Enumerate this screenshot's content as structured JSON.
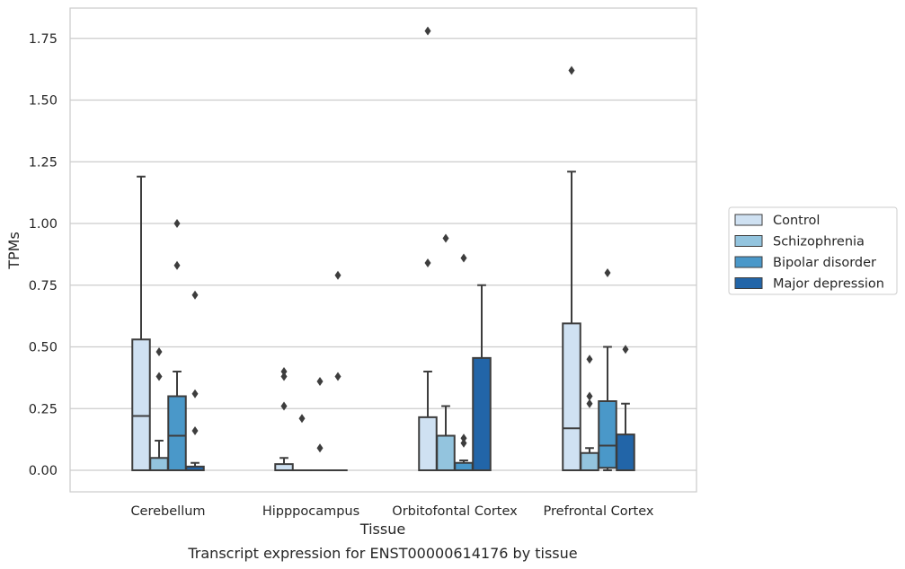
{
  "chart_data": {
    "type": "box",
    "title": "Transcript expression for ENST00000614176 by tissue",
    "xlabel": "Tissue",
    "ylabel": "TPMs",
    "ylim": [
      -0.085,
      1.87
    ],
    "yticks": [
      0.0,
      0.25,
      0.5,
      0.75,
      1.0,
      1.25,
      1.5,
      1.75
    ],
    "ytick_labels": [
      "0.00",
      "0.25",
      "0.50",
      "0.75",
      "1.00",
      "1.25",
      "1.50",
      "1.75"
    ],
    "grid": "horizontal",
    "legend_position": "right",
    "categories": [
      "Cerebellum",
      "Hipppocampus",
      "Orbitofontal Cortex",
      "Prefrontal Cortex"
    ],
    "series": [
      {
        "name": "Control",
        "color": "#cfe1f2",
        "boxes": [
          {
            "q1": 0.0,
            "median": 0.22,
            "q3": 0.53,
            "whisker_low": 0.0,
            "whisker_high": 1.19,
            "outliers": []
          },
          {
            "q1": 0.0,
            "median": 0.0,
            "q3": 0.025,
            "whisker_low": 0.0,
            "whisker_high": 0.05,
            "outliers": [
              0.26,
              0.38,
              0.4
            ]
          },
          {
            "q1": 0.0,
            "median": 0.0,
            "q3": 0.215,
            "whisker_low": 0.0,
            "whisker_high": 0.4,
            "outliers": [
              0.84,
              1.78
            ]
          },
          {
            "q1": 0.0,
            "median": 0.17,
            "q3": 0.595,
            "whisker_low": 0.0,
            "whisker_high": 1.21,
            "outliers": [
              1.62
            ]
          }
        ]
      },
      {
        "name": "Schizophrenia",
        "color": "#93c4de",
        "boxes": [
          {
            "q1": 0.0,
            "median": 0.0,
            "q3": 0.05,
            "whisker_low": 0.0,
            "whisker_high": 0.12,
            "outliers": [
              0.38,
              0.48
            ]
          },
          {
            "q1": 0.0,
            "median": 0.0,
            "q3": 0.0,
            "whisker_low": 0.0,
            "whisker_high": 0.0,
            "outliers": [
              0.21
            ]
          },
          {
            "q1": 0.0,
            "median": 0.0,
            "q3": 0.14,
            "whisker_low": 0.0,
            "whisker_high": 0.26,
            "outliers": [
              0.94
            ]
          },
          {
            "q1": 0.0,
            "median": 0.0,
            "q3": 0.07,
            "whisker_low": 0.0,
            "whisker_high": 0.09,
            "outliers": [
              0.27,
              0.3,
              0.45
            ]
          }
        ]
      },
      {
        "name": "Bipolar disorder",
        "color": "#4a98c9",
        "boxes": [
          {
            "q1": 0.0,
            "median": 0.14,
            "q3": 0.3,
            "whisker_low": 0.0,
            "whisker_high": 0.4,
            "outliers": [
              0.83,
              1.0
            ]
          },
          {
            "q1": 0.0,
            "median": 0.0,
            "q3": 0.0,
            "whisker_low": 0.0,
            "whisker_high": 0.0,
            "outliers": [
              0.09,
              0.36
            ]
          },
          {
            "q1": 0.0,
            "median": 0.0,
            "q3": 0.03,
            "whisker_low": 0.0,
            "whisker_high": 0.04,
            "outliers": [
              0.11,
              0.13,
              0.86
            ]
          },
          {
            "q1": 0.01,
            "median": 0.1,
            "q3": 0.28,
            "whisker_low": 0.0,
            "whisker_high": 0.5,
            "outliers": [
              0.8
            ]
          }
        ]
      },
      {
        "name": "Major depression",
        "color": "#2265a8",
        "boxes": [
          {
            "q1": 0.0,
            "median": 0.0,
            "q3": 0.015,
            "whisker_low": 0.0,
            "whisker_high": 0.03,
            "outliers": [
              0.16,
              0.31,
              0.71
            ]
          },
          {
            "q1": 0.0,
            "median": 0.0,
            "q3": 0.0,
            "whisker_low": 0.0,
            "whisker_high": 0.0,
            "outliers": [
              0.38,
              0.79
            ]
          },
          {
            "q1": 0.0,
            "median": 0.0,
            "q3": 0.455,
            "whisker_low": 0.0,
            "whisker_high": 0.75,
            "outliers": []
          },
          {
            "q1": 0.0,
            "median": 0.0,
            "q3": 0.145,
            "whisker_low": 0.0,
            "whisker_high": 0.27,
            "outliers": [
              0.49
            ]
          }
        ]
      }
    ]
  }
}
